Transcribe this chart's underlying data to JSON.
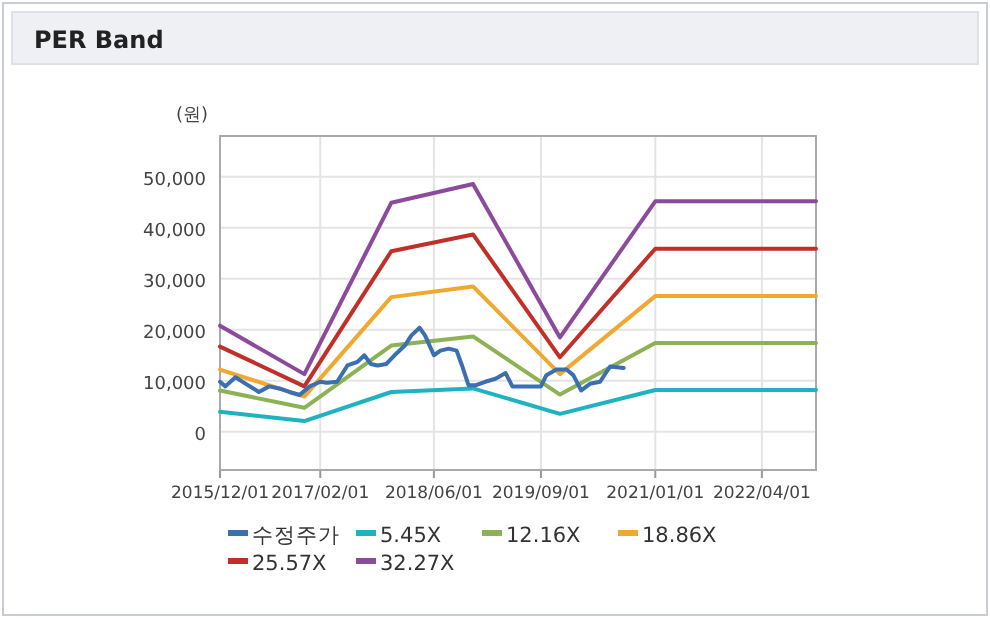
{
  "chart_data": {
    "type": "line",
    "title": "PER Band",
    "ylabel": "(원)",
    "grid": true,
    "legend": "bottom",
    "marker": "none",
    "line_style": "solid",
    "xlim": [
      "2015-12-01",
      "2022-11-18"
    ],
    "ylim": [
      -7500,
      58000
    ],
    "xticks": [
      {
        "value": "2015-12-01",
        "label": "2015/12/01"
      },
      {
        "value": "2017-02-01",
        "label": "2017/02/01"
      },
      {
        "value": "2018-06-01",
        "label": "2018/06/01"
      },
      {
        "value": "2019-09-01",
        "label": "2019/09/01"
      },
      {
        "value": "2021-01-01",
        "label": "2021/01/01"
      },
      {
        "value": "2022-04-01",
        "label": "2022/04/01"
      }
    ],
    "yticks": [
      {
        "value": 0,
        "label": "0"
      },
      {
        "value": 10000,
        "label": "10,000"
      },
      {
        "value": 20000,
        "label": "20,000"
      },
      {
        "value": 30000,
        "label": "30,000"
      },
      {
        "value": 40000,
        "label": "40,000"
      },
      {
        "value": 50000,
        "label": "50,000"
      }
    ],
    "series": [
      {
        "name": "수정주가",
        "color": "#3a6fb0",
        "x": [
          "2015-12-01",
          "2015-12-24",
          "2016-02-05",
          "2016-03-20",
          "2016-05-15",
          "2016-06-28",
          "2016-08-10",
          "2016-09-22",
          "2016-11-05",
          "2016-12-18",
          "2017-02-01",
          "2017-03-01",
          "2017-04-14",
          "2017-05-28",
          "2017-07-10",
          "2017-08-08",
          "2017-09-05",
          "2017-10-04",
          "2017-11-10",
          "2017-12-15",
          "2018-01-28",
          "2018-02-25",
          "2018-04-01",
          "2018-04-24",
          "2018-06-01",
          "2018-06-29",
          "2018-08-03",
          "2018-09-06",
          "2018-09-29",
          "2018-10-27",
          "2018-11-25",
          "2019-01-06",
          "2019-02-19",
          "2019-04-03",
          "2019-05-02",
          "2019-06-14",
          "2019-07-27",
          "2019-09-01",
          "2019-09-24",
          "2019-11-06",
          "2019-12-19",
          "2020-01-17",
          "2020-02-20",
          "2020-03-28",
          "2020-05-10",
          "2020-06-22",
          "2020-08-19"
        ],
        "values": [
          9800,
          8900,
          10700,
          9400,
          7800,
          8900,
          8500,
          7800,
          7200,
          8900,
          9800,
          9600,
          9800,
          13000,
          13700,
          15000,
          13300,
          13000,
          13300,
          15000,
          16900,
          18900,
          20400,
          18900,
          15000,
          15900,
          16300,
          15900,
          13000,
          9100,
          9100,
          9800,
          10400,
          11500,
          8900,
          8900,
          8900,
          8900,
          11100,
          12200,
          12200,
          11100,
          8100,
          9400,
          9800,
          12800,
          12500
        ]
      },
      {
        "name": "5.45X",
        "color": "#20b2c0",
        "x": [
          "2015-12-01",
          "2016-11-25",
          "2017-12-01",
          "2018-11-15",
          "2019-11-21",
          "2021-01-01",
          "2022-11-18"
        ],
        "values": [
          3900,
          2100,
          7800,
          8500,
          3500,
          8200,
          8200
        ]
      },
      {
        "name": "12.16X",
        "color": "#8db255",
        "x": [
          "2015-12-01",
          "2016-11-25",
          "2017-12-01",
          "2018-11-15",
          "2019-11-21",
          "2021-01-01",
          "2022-11-18"
        ],
        "values": [
          8100,
          4700,
          16900,
          18700,
          7300,
          17400,
          17400
        ]
      },
      {
        "name": "18.86X",
        "color": "#f0a830",
        "x": [
          "2015-12-01",
          "2016-11-25",
          "2017-12-01",
          "2018-11-15",
          "2019-11-21",
          "2021-01-01",
          "2022-11-18"
        ],
        "values": [
          12200,
          6900,
          26400,
          28500,
          11300,
          26600,
          26600
        ]
      },
      {
        "name": "25.57X",
        "color": "#c03028",
        "x": [
          "2015-12-01",
          "2016-11-25",
          "2017-12-01",
          "2018-11-15",
          "2019-11-21",
          "2021-01-01",
          "2022-11-18"
        ],
        "values": [
          16700,
          8900,
          35400,
          38700,
          14600,
          35900,
          35900
        ]
      },
      {
        "name": "32.27X",
        "color": "#8c4a9c",
        "x": [
          "2015-12-01",
          "2016-11-25",
          "2017-12-01",
          "2018-11-15",
          "2019-11-21",
          "2021-01-01",
          "2022-11-18"
        ],
        "values": [
          20800,
          11300,
          44900,
          48600,
          18500,
          45200,
          45200
        ]
      }
    ]
  }
}
